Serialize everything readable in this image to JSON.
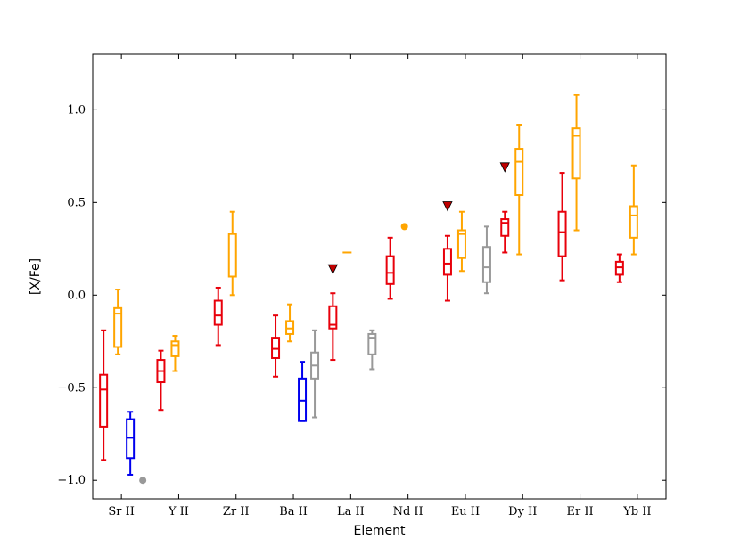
{
  "chart_data": {
    "type": "box",
    "title": "",
    "xlabel": "Element",
    "ylabel": "[X/Fe]",
    "ylim": [
      -1.1,
      1.3
    ],
    "yticks": [
      -1.0,
      -0.5,
      0.0,
      0.5,
      1.0
    ],
    "ytick_labels": [
      "−1.0",
      "−0.5",
      "0.0",
      "0.5",
      "1.0"
    ],
    "grid": false,
    "categories": [
      "Sr II",
      "Y II",
      "Zr II",
      "Ba II",
      "La II",
      "Nd II",
      "Eu II",
      "Dy II",
      "Er II",
      "Yb II"
    ],
    "series_colors": [
      "#e8000b",
      "#ffa500",
      "#0000ee",
      "#999999"
    ],
    "boxes": [
      {
        "category": "Sr II",
        "series": 0,
        "whislo": -0.89,
        "q1": -0.71,
        "med": -0.51,
        "q3": -0.43,
        "whishi": -0.19
      },
      {
        "category": "Sr II",
        "series": 1,
        "whislo": -0.32,
        "q1": -0.28,
        "med": -0.1,
        "q3": -0.07,
        "whishi": 0.03
      },
      {
        "category": "Sr II",
        "series": 2,
        "whislo": -0.97,
        "q1": -0.88,
        "med": -0.77,
        "q3": -0.67,
        "whishi": -0.63
      },
      {
        "category": "Y II",
        "series": 0,
        "whislo": -0.62,
        "q1": -0.47,
        "med": -0.41,
        "q3": -0.35,
        "whishi": -0.3
      },
      {
        "category": "Y II",
        "series": 1,
        "whislo": -0.41,
        "q1": -0.33,
        "med": -0.27,
        "q3": -0.25,
        "whishi": -0.22
      },
      {
        "category": "Zr II",
        "series": 0,
        "whislo": -0.27,
        "q1": -0.16,
        "med": -0.11,
        "q3": -0.03,
        "whishi": 0.04
      },
      {
        "category": "Zr II",
        "series": 1,
        "whislo": 0.0,
        "q1": 0.1,
        "med": 0.1,
        "q3": 0.33,
        "whishi": 0.45
      },
      {
        "category": "Ba II",
        "series": 0,
        "whislo": -0.44,
        "q1": -0.34,
        "med": -0.29,
        "q3": -0.23,
        "whishi": -0.11
      },
      {
        "category": "Ba II",
        "series": 1,
        "whislo": -0.25,
        "q1": -0.21,
        "med": -0.18,
        "q3": -0.14,
        "whishi": -0.05
      },
      {
        "category": "Ba II",
        "series": 2,
        "whislo": -0.68,
        "q1": -0.68,
        "med": -0.57,
        "q3": -0.45,
        "whishi": -0.36
      },
      {
        "category": "Ba II",
        "series": 3,
        "whislo": -0.66,
        "q1": -0.45,
        "med": -0.38,
        "q3": -0.31,
        "whishi": -0.19
      },
      {
        "category": "La II",
        "series": 0,
        "whislo": -0.35,
        "q1": -0.18,
        "med": -0.16,
        "q3": -0.06,
        "whishi": 0.01
      },
      {
        "category": "La II",
        "series": 3,
        "whislo": -0.4,
        "q1": -0.32,
        "med": -0.23,
        "q3": -0.21,
        "whishi": -0.19
      },
      {
        "category": "Nd II",
        "series": 0,
        "whislo": -0.02,
        "q1": 0.06,
        "med": 0.12,
        "q3": 0.21,
        "whishi": 0.31
      },
      {
        "category": "Eu II",
        "series": 0,
        "whislo": -0.03,
        "q1": 0.11,
        "med": 0.17,
        "q3": 0.25,
        "whishi": 0.32
      },
      {
        "category": "Eu II",
        "series": 1,
        "whislo": 0.13,
        "q1": 0.2,
        "med": 0.33,
        "q3": 0.35,
        "whishi": 0.45
      },
      {
        "category": "Eu II",
        "series": 3,
        "whislo": 0.01,
        "q1": 0.07,
        "med": 0.15,
        "q3": 0.26,
        "whishi": 0.37
      },
      {
        "category": "Dy II",
        "series": 0,
        "whislo": 0.23,
        "q1": 0.32,
        "med": 0.39,
        "q3": 0.41,
        "whishi": 0.45
      },
      {
        "category": "Dy II",
        "series": 1,
        "whislo": 0.22,
        "q1": 0.54,
        "med": 0.72,
        "q3": 0.79,
        "whishi": 0.92
      },
      {
        "category": "Er II",
        "series": 0,
        "whislo": 0.08,
        "q1": 0.21,
        "med": 0.34,
        "q3": 0.45,
        "whishi": 0.66
      },
      {
        "category": "Er II",
        "series": 1,
        "whislo": 0.35,
        "q1": 0.63,
        "med": 0.86,
        "q3": 0.9,
        "whishi": 1.08
      },
      {
        "category": "Yb II",
        "series": 0,
        "whislo": 0.07,
        "q1": 0.11,
        "med": 0.15,
        "q3": 0.18,
        "whishi": 0.22
      },
      {
        "category": "Yb II",
        "series": 1,
        "whislo": 0.22,
        "q1": 0.31,
        "med": 0.43,
        "q3": 0.48,
        "whishi": 0.7
      }
    ],
    "points": [
      {
        "category": "Sr II",
        "series": 3,
        "y": -1.0
      },
      {
        "category": "Nd II",
        "series": 1,
        "y": 0.37
      }
    ],
    "single_values": [
      {
        "category": "La II",
        "series": 1,
        "y": 0.23
      }
    ],
    "upper_limits": [
      {
        "category": "La II",
        "series": 0,
        "y": 0.14
      },
      {
        "category": "Eu II",
        "series": 0,
        "y": 0.48
      },
      {
        "category": "Dy II",
        "series": 0,
        "y": 0.69
      }
    ]
  }
}
